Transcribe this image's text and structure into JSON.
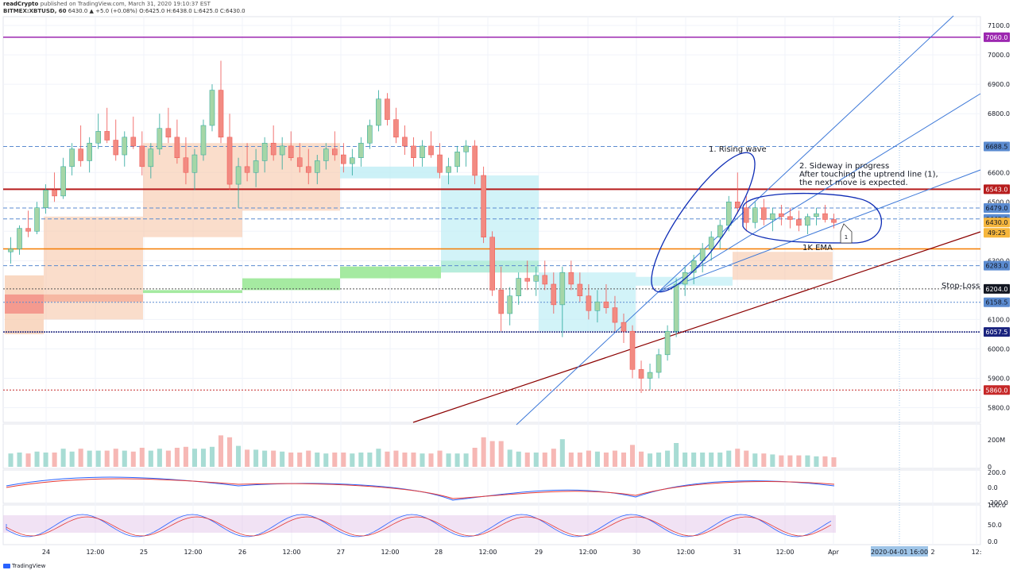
{
  "header": {
    "author": "readCrypto",
    "published": "published on TradingView.com, March 31, 2020 19:10:37 EST",
    "symbol": "BITMEX:XBTUSD, 60",
    "ohlc": "6430.0 ▲ +5.0 (+0.08%) O:6425.0 H:6438.0 L:6425.0 C:6430.0"
  },
  "footer": {
    "brand": "TradingView"
  },
  "chart_data": {
    "type": "candlestick",
    "price_axis": {
      "ticks": [
        "7100.0",
        "7000.0",
        "6900.0",
        "6800.0",
        "6600.0",
        "6500.0",
        "6400.0",
        "6300.0",
        "6100.0",
        "6000.0",
        "5900.0",
        "5800.0"
      ],
      "ylim": [
        5750,
        7130
      ]
    },
    "time_axis": {
      "ticks": [
        "24",
        "12:00",
        "25",
        "12:00",
        "26",
        "12:00",
        "27",
        "12:00",
        "28",
        "12:00",
        "29",
        "12:00",
        "30",
        "12:00",
        "31",
        "12:00",
        "Apr",
        "2",
        "12:"
      ],
      "cursor_label": "2020-04-01  16:00"
    },
    "price_labels": [
      {
        "value": "7060.0",
        "color": "#9c27b0"
      },
      {
        "value": "6688.5",
        "color": "#5b8bd0"
      },
      {
        "value": "6543.0",
        "color": "#b71c1c"
      },
      {
        "value": "6479.0",
        "color": "#5b8bd0"
      },
      {
        "value": "6442.0",
        "color": "#5b8bd0"
      },
      {
        "value": "6430.0",
        "color": "#f6b63c"
      },
      {
        "value": "49:25",
        "color": "#f6b63c"
      },
      {
        "value": "6283.0",
        "color": "#5b8bd0"
      },
      {
        "value": "6204.0",
        "color": "#131722"
      },
      {
        "value": "6158.5",
        "color": "#5b8bd0"
      },
      {
        "value": "6057.5",
        "color": "#1a237e"
      },
      {
        "value": "5860.0",
        "color": "#c62828"
      }
    ],
    "annotations": {
      "rising_wave": "1. Rising wave",
      "sideway": [
        "2. Sideway in progress",
        "After touching the uptrend line (1),",
        "the next move is expected."
      ],
      "ema": "1K EMA",
      "stop_loss": "Stop-Loss",
      "marker": "1"
    },
    "volume_axis": [
      "200M",
      "0"
    ],
    "macd_axis": [
      "200.0",
      "0.0",
      "-200.0"
    ],
    "stoch_axis": [
      "100.0",
      "50.0",
      "0.0"
    ],
    "candles": [
      [
        6330,
        6380,
        6290,
        6340
      ],
      [
        6340,
        6420,
        6320,
        6410
      ],
      [
        6410,
        6470,
        6380,
        6400
      ],
      [
        6400,
        6500,
        6390,
        6480
      ],
      [
        6480,
        6560,
        6460,
        6540
      ],
      [
        6540,
        6600,
        6500,
        6520
      ],
      [
        6520,
        6650,
        6510,
        6620
      ],
      [
        6620,
        6700,
        6590,
        6680
      ],
      [
        6680,
        6760,
        6620,
        6640
      ],
      [
        6640,
        6720,
        6600,
        6700
      ],
      [
        6700,
        6800,
        6680,
        6740
      ],
      [
        6740,
        6820,
        6700,
        6710
      ],
      [
        6710,
        6780,
        6640,
        6660
      ],
      [
        6660,
        6740,
        6620,
        6720
      ],
      [
        6720,
        6790,
        6680,
        6690
      ],
      [
        6690,
        6740,
        6590,
        6620
      ],
      [
        6620,
        6700,
        6580,
        6680
      ],
      [
        6680,
        6800,
        6660,
        6750
      ],
      [
        6750,
        6820,
        6700,
        6720
      ],
      [
        6720,
        6780,
        6630,
        6650
      ],
      [
        6650,
        6720,
        6560,
        6600
      ],
      [
        6600,
        6680,
        6540,
        6660
      ],
      [
        6660,
        6780,
        6640,
        6760
      ],
      [
        6760,
        6900,
        6740,
        6880
      ],
      [
        6880,
        6980,
        6700,
        6720
      ],
      [
        6720,
        6800,
        6540,
        6560
      ],
      [
        6560,
        6650,
        6480,
        6620
      ],
      [
        6620,
        6700,
        6570,
        6600
      ],
      [
        6600,
        6680,
        6550,
        6640
      ],
      [
        6640,
        6720,
        6600,
        6700
      ],
      [
        6700,
        6760,
        6640,
        6660
      ],
      [
        6660,
        6720,
        6610,
        6690
      ],
      [
        6690,
        6740,
        6640,
        6650
      ],
      [
        6650,
        6700,
        6600,
        6620
      ],
      [
        6620,
        6680,
        6560,
        6600
      ],
      [
        6600,
        6660,
        6560,
        6640
      ],
      [
        6640,
        6700,
        6610,
        6680
      ],
      [
        6680,
        6740,
        6640,
        6660
      ],
      [
        6660,
        6700,
        6600,
        6630
      ],
      [
        6630,
        6680,
        6590,
        6650
      ],
      [
        6650,
        6720,
        6620,
        6700
      ],
      [
        6700,
        6780,
        6680,
        6760
      ],
      [
        6760,
        6880,
        6740,
        6850
      ],
      [
        6850,
        6870,
        6760,
        6780
      ],
      [
        6780,
        6820,
        6700,
        6720
      ],
      [
        6720,
        6760,
        6660,
        6690
      ],
      [
        6690,
        6720,
        6620,
        6650
      ],
      [
        6650,
        6710,
        6620,
        6690
      ],
      [
        6690,
        6740,
        6650,
        6660
      ],
      [
        6660,
        6700,
        6580,
        6600
      ],
      [
        6600,
        6650,
        6560,
        6620
      ],
      [
        6620,
        6690,
        6600,
        6670
      ],
      [
        6670,
        6710,
        6620,
        6690
      ],
      [
        6690,
        6710,
        6560,
        6590
      ],
      [
        6590,
        6620,
        6360,
        6380
      ],
      [
        6380,
        6400,
        6180,
        6200
      ],
      [
        6200,
        6280,
        6060,
        6120
      ],
      [
        6120,
        6210,
        6080,
        6180
      ],
      [
        6180,
        6260,
        6150,
        6240
      ],
      [
        6240,
        6300,
        6200,
        6230
      ],
      [
        6230,
        6280,
        6180,
        6250
      ],
      [
        6250,
        6300,
        6200,
        6220
      ],
      [
        6220,
        6260,
        6120,
        6150
      ],
      [
        6150,
        6280,
        6040,
        6260
      ],
      [
        6260,
        6300,
        6200,
        6220
      ],
      [
        6220,
        6260,
        6160,
        6180
      ],
      [
        6180,
        6220,
        6100,
        6130
      ],
      [
        6130,
        6200,
        6090,
        6160
      ],
      [
        6160,
        6220,
        6120,
        6140
      ],
      [
        6140,
        6180,
        6060,
        6090
      ],
      [
        6090,
        6120,
        6020,
        6060
      ],
      [
        6060,
        6080,
        5900,
        5930
      ],
      [
        5930,
        5960,
        5850,
        5900
      ],
      [
        5900,
        5950,
        5860,
        5920
      ],
      [
        5920,
        6000,
        5900,
        5980
      ],
      [
        5980,
        6080,
        5960,
        6060
      ],
      [
        6060,
        6240,
        6040,
        6220
      ],
      [
        6220,
        6280,
        6180,
        6260
      ],
      [
        6260,
        6320,
        6220,
        6300
      ],
      [
        6300,
        6360,
        6260,
        6340
      ],
      [
        6340,
        6400,
        6300,
        6380
      ],
      [
        6380,
        6440,
        6340,
        6420
      ],
      [
        6420,
        6520,
        6400,
        6500
      ],
      [
        6500,
        6600,
        6460,
        6480
      ],
      [
        6480,
        6520,
        6400,
        6430
      ],
      [
        6430,
        6500,
        6410,
        6480
      ],
      [
        6480,
        6510,
        6420,
        6440
      ],
      [
        6440,
        6480,
        6400,
        6460
      ],
      [
        6460,
        6490,
        6420,
        6450
      ],
      [
        6450,
        6480,
        6410,
        6440
      ],
      [
        6440,
        6470,
        6400,
        6420
      ],
      [
        6420,
        6460,
        6390,
        6450
      ],
      [
        6450,
        6480,
        6420,
        6460
      ],
      [
        6460,
        6490,
        6430,
        6440
      ],
      [
        6440,
        6460,
        6410,
        6430
      ]
    ]
  }
}
